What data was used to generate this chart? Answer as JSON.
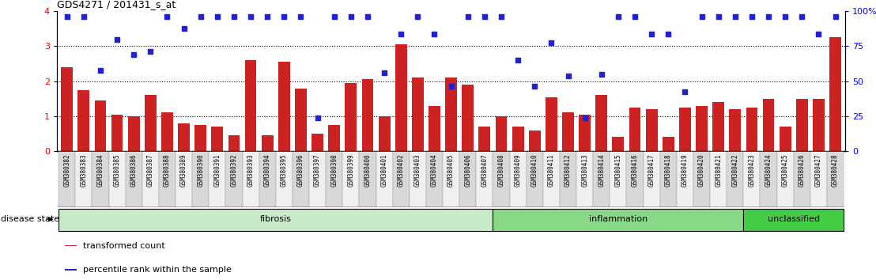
{
  "title": "GDS4271 / 201431_s_at",
  "samples": [
    "GSM380382",
    "GSM380383",
    "GSM380384",
    "GSM380385",
    "GSM380386",
    "GSM380387",
    "GSM380388",
    "GSM380389",
    "GSM380390",
    "GSM380391",
    "GSM380392",
    "GSM380393",
    "GSM380394",
    "GSM380395",
    "GSM380396",
    "GSM380397",
    "GSM380398",
    "GSM380399",
    "GSM380400",
    "GSM380401",
    "GSM380402",
    "GSM380403",
    "GSM380404",
    "GSM380405",
    "GSM380406",
    "GSM380407",
    "GSM380408",
    "GSM380409",
    "GSM380410",
    "GSM380411",
    "GSM380412",
    "GSM380413",
    "GSM380414",
    "GSM380415",
    "GSM380416",
    "GSM380417",
    "GSM380418",
    "GSM380419",
    "GSM380420",
    "GSM380421",
    "GSM380422",
    "GSM380423",
    "GSM380424",
    "GSM380425",
    "GSM380426",
    "GSM380427",
    "GSM380428"
  ],
  "transformed_count": [
    2.4,
    1.75,
    1.45,
    1.05,
    1.0,
    1.6,
    1.1,
    0.8,
    0.75,
    0.7,
    0.45,
    2.6,
    0.45,
    2.55,
    1.8,
    0.5,
    0.75,
    1.95,
    2.05,
    1.0,
    3.05,
    2.1,
    1.3,
    2.1,
    1.9,
    0.7,
    1.0,
    0.7,
    0.6,
    1.55,
    1.1,
    1.05,
    1.6,
    0.4,
    1.25,
    1.2,
    0.4,
    1.25,
    1.3,
    1.4,
    1.2,
    1.25,
    1.5,
    0.7,
    1.5,
    1.5,
    3.25
  ],
  "percentile_rank": [
    3.85,
    3.85,
    2.3,
    3.2,
    2.75,
    2.85,
    3.85,
    3.5,
    3.85,
    3.85,
    3.85,
    3.85,
    3.85,
    3.85,
    3.85,
    0.95,
    3.85,
    3.85,
    3.85,
    2.25,
    3.35,
    3.85,
    3.35,
    1.85,
    3.85,
    3.85,
    3.85,
    2.6,
    1.85,
    3.1,
    2.15,
    0.95,
    2.2,
    3.85,
    3.85,
    3.35,
    3.35,
    1.7,
    3.85,
    3.85,
    3.85,
    3.85,
    3.85,
    3.85,
    3.85,
    3.35,
    3.85
  ],
  "disease_groups": [
    {
      "label": "fibrosis",
      "start": 0,
      "end": 26,
      "color": "#c8eac8"
    },
    {
      "label": "inflammation",
      "start": 26,
      "end": 41,
      "color": "#88d888"
    },
    {
      "label": "unclassified",
      "start": 41,
      "end": 47,
      "color": "#44cc44"
    }
  ],
  "bar_color": "#cc2222",
  "dot_color": "#2222cc",
  "ylim_left": [
    0,
    4
  ],
  "ylim_right": [
    0,
    100
  ],
  "yticks_left": [
    0,
    1,
    2,
    3,
    4
  ],
  "yticks_right": [
    0,
    25,
    50,
    75,
    100
  ],
  "ytick_labels_right": [
    "0",
    "25",
    "50",
    "75",
    "100%"
  ],
  "dotted_lines": [
    1,
    2,
    3
  ],
  "legend_items": [
    {
      "label": "transformed count",
      "color": "#cc2222"
    },
    {
      "label": "percentile rank within the sample",
      "color": "#2222cc"
    }
  ],
  "disease_state_label": "disease state",
  "tick_bg_even": "#d8d8d8",
  "tick_bg_odd": "#f0f0f0"
}
